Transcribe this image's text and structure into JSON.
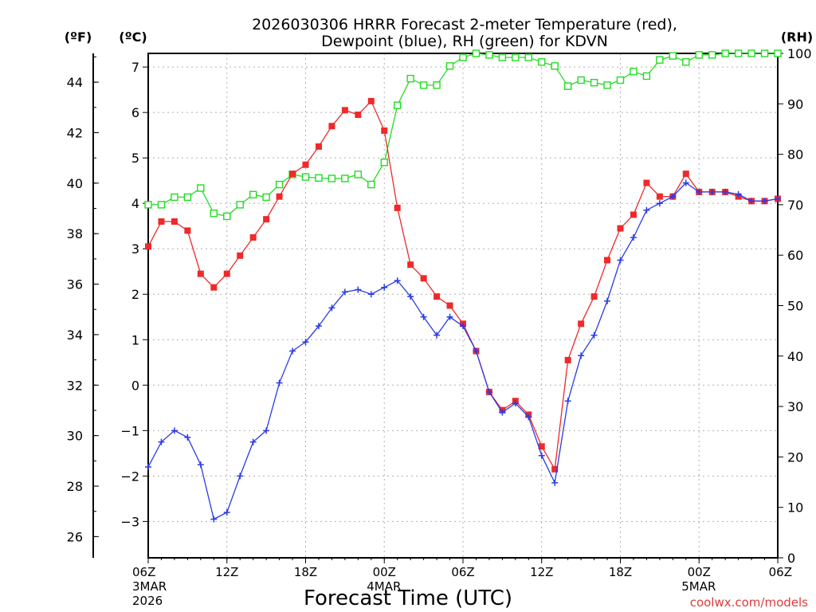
{
  "chart_data": {
    "type": "line",
    "title_line1": "2026030306 HRRR Forecast 2-meter Temperature (red),",
    "title_line2": "Dewpoint (blue), RH (green) for KDVN",
    "xlabel": "Forecast Time (UTC)",
    "watermark": "coolwx.com/models",
    "left_unit_f": "(ºF)",
    "left_unit_c": "(ºC)",
    "right_unit": "(RH)",
    "x_range_hours": [
      0,
      48
    ],
    "c_range": [
      -3.8,
      7.3
    ],
    "rh_range": [
      0,
      100
    ],
    "f_ticks": [
      "26",
      "28",
      "30",
      "32",
      "34",
      "36",
      "38",
      "40",
      "42",
      "44"
    ],
    "c_ticks": [
      "−3",
      "−2",
      "−1",
      "0",
      "1",
      "2",
      "3",
      "4",
      "5",
      "6",
      "7"
    ],
    "rh_ticks": [
      "0",
      "10",
      "20",
      "30",
      "40",
      "50",
      "60",
      "70",
      "80",
      "90",
      "100"
    ],
    "x_ticks": [
      {
        "hour": 0,
        "label": "06Z",
        "date": "3MAR",
        "year": "2026"
      },
      {
        "hour": 6,
        "label": "12Z"
      },
      {
        "hour": 12,
        "label": "18Z"
      },
      {
        "hour": 18,
        "label": "00Z",
        "date": "4MAR"
      },
      {
        "hour": 24,
        "label": "06Z"
      },
      {
        "hour": 30,
        "label": "12Z"
      },
      {
        "hour": 36,
        "label": "18Z"
      },
      {
        "hour": 42,
        "label": "00Z",
        "date": "5MAR"
      },
      {
        "hour": 48,
        "label": "06Z"
      }
    ],
    "series": [
      {
        "name": "Temperature",
        "color": "#ee2a2a",
        "marker": "filled-square",
        "units": "C",
        "values": [
          3.05,
          3.6,
          3.6,
          3.4,
          2.45,
          2.15,
          2.45,
          2.85,
          3.25,
          3.65,
          4.15,
          4.65,
          4.85,
          5.25,
          5.7,
          6.05,
          5.95,
          6.25,
          5.6,
          3.9,
          2.65,
          2.35,
          1.95,
          1.75,
          1.35,
          0.75,
          -0.15,
          -0.55,
          -0.35,
          -0.65,
          -1.35,
          -1.85,
          0.55,
          1.35,
          1.95,
          2.75,
          3.45,
          3.75,
          4.45,
          4.15,
          4.15,
          4.65,
          4.25,
          4.25,
          4.25,
          4.15,
          4.05,
          4.05,
          4.1
        ]
      },
      {
        "name": "Dewpoint",
        "color": "#2a3ae8",
        "marker": "plus",
        "units": "C",
        "values": [
          -1.8,
          -1.25,
          -1.0,
          -1.15,
          -1.75,
          -2.95,
          -2.8,
          -2.0,
          -1.25,
          -1.0,
          0.05,
          0.75,
          0.95,
          1.3,
          1.7,
          2.05,
          2.1,
          2.0,
          2.15,
          2.3,
          1.95,
          1.5,
          1.1,
          1.5,
          1.3,
          0.75,
          -0.15,
          -0.6,
          -0.4,
          -0.7,
          -1.55,
          -2.15,
          -0.35,
          0.65,
          1.1,
          1.85,
          2.75,
          3.25,
          3.85,
          4.0,
          4.15,
          4.45,
          4.25,
          4.25,
          4.25,
          4.2,
          4.05,
          4.05,
          4.1
        ]
      },
      {
        "name": "RH",
        "color": "#22dd22",
        "marker": "open-square",
        "units": "%",
        "values": [
          70,
          70,
          71.5,
          71.5,
          73.3,
          68.3,
          67.7,
          70,
          72,
          71.5,
          74,
          76,
          75.5,
          75.3,
          75.2,
          75.2,
          76,
          74,
          78.4,
          89.7,
          95,
          93.7,
          93.7,
          97.5,
          99.2,
          100,
          99.7,
          99.2,
          99.2,
          99.2,
          98.3,
          97.5,
          93.5,
          94.7,
          94.2,
          93.7,
          94.7,
          96.4,
          95.5,
          98.7,
          99.5,
          98.3,
          99.7,
          99.7,
          100,
          100,
          100,
          100,
          100
        ]
      }
    ]
  }
}
